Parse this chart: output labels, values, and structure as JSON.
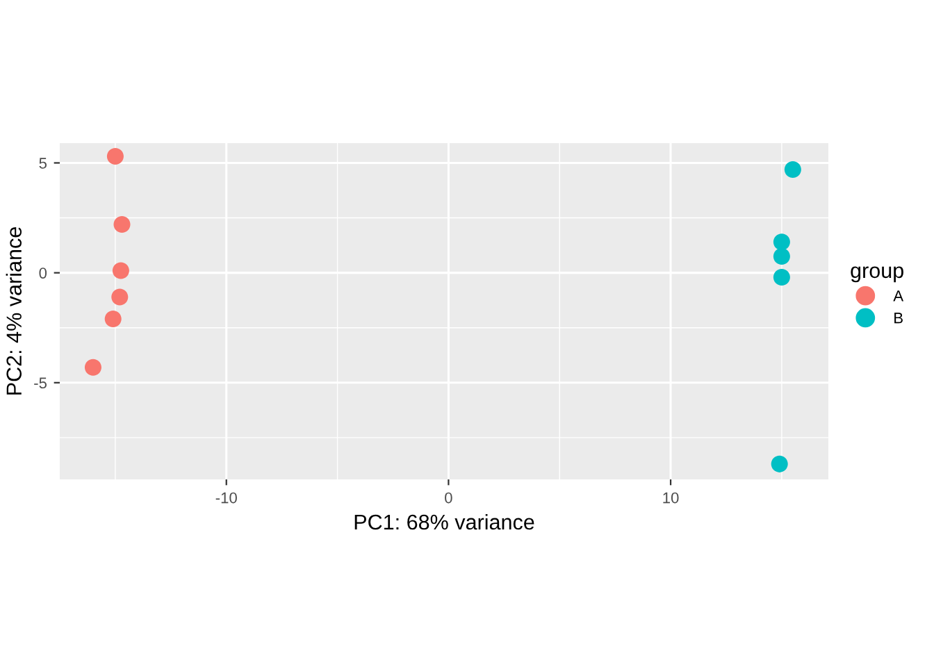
{
  "chart_data": {
    "type": "scatter",
    "xlabel": "PC1: 68% variance",
    "ylabel": "PC2: 4% variance",
    "legend_title": "group",
    "series": [
      {
        "name": "A",
        "color": "#f8766d",
        "x": [
          -15.0,
          -14.7,
          -14.75,
          -14.8,
          -15.1,
          -16.0
        ],
        "values": [
          5.3,
          2.2,
          0.1,
          -1.1,
          -2.1,
          -4.3
        ]
      },
      {
        "name": "B",
        "color": "#00bfc4",
        "x": [
          15.5,
          15.1,
          15.0,
          15.0,
          15.0,
          14.9
        ],
        "values": [
          4.7,
          null,
          1.4,
          0.75,
          -0.2,
          -8.7
        ]
      }
    ],
    "xlim": [
      -17.5,
      17.1
    ],
    "ylim": [
      -9.4,
      5.9
    ],
    "xticks": [
      -10,
      0,
      10
    ],
    "yticks": [
      -5,
      0,
      5
    ],
    "grid": true,
    "legend": "right",
    "marker": "circle"
  }
}
